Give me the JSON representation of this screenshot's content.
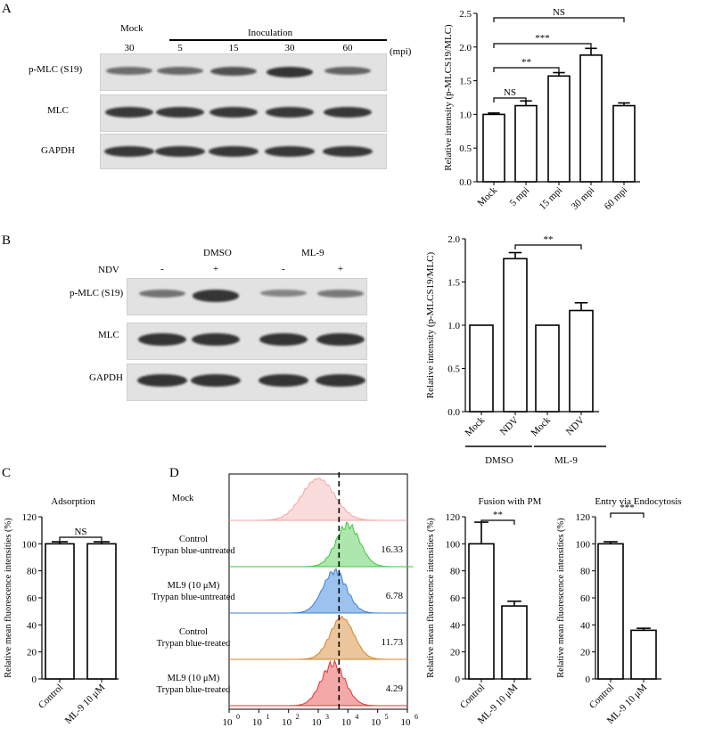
{
  "panels": {
    "A": "A",
    "B": "B",
    "C": "C",
    "D": "D"
  },
  "panelA_blot": {
    "mock_header": "Mock",
    "inoculation_header": "Inoculation",
    "unit": "(mpi)",
    "lanes": [
      "30",
      "5",
      "15",
      "30",
      "60"
    ],
    "rows": [
      "p-MLC (S19)",
      "MLC",
      "GAPDH"
    ],
    "pmlc_intensity": [
      0.45,
      0.5,
      0.7,
      0.95,
      0.55
    ]
  },
  "panelB_blot": {
    "group_labels": [
      "DMSO",
      "ML-9"
    ],
    "ndv_label": "NDV",
    "ndv_signs": [
      "-",
      "+",
      "-",
      "+"
    ],
    "rows": [
      "p-MLC (S19)",
      "MLC",
      "GAPDH"
    ],
    "pmlc_intensity": [
      0.45,
      0.95,
      0.3,
      0.4
    ]
  },
  "flow": {
    "row_labels": [
      [
        "Mock"
      ],
      [
        "Control",
        "Trypan blue-untreated"
      ],
      [
        "ML9 (10 μM)",
        "Trypan blue-untreated"
      ],
      [
        "Control",
        "Trypan blue-treated"
      ],
      [
        "ML9 (10 μM)",
        "Trypan blue-treated"
      ]
    ],
    "values": [
      "",
      "16.33",
      "6.78",
      "11.73",
      "4.29"
    ],
    "colors": [
      "#f4a3a3",
      "#3cc83c",
      "#3b82d6",
      "#d8842a",
      "#e83232"
    ],
    "fills": [
      "#f9d6d6",
      "#9fe39f",
      "#8cb7ea",
      "#e8bb8a",
      "#f29a9a"
    ],
    "peaks_log": [
      3.0,
      4.0,
      3.55,
      3.8,
      3.5
    ],
    "xticks": [
      "10",
      "10",
      "10",
      "10",
      "10",
      "10",
      "10"
    ],
    "xtick_exps": [
      "0",
      "1",
      "2",
      "3",
      "4",
      "5",
      "6"
    ]
  },
  "chart_data": [
    {
      "type": "bar",
      "panel": "A",
      "categories": [
        "Mock",
        "5 mpi",
        "15 mpi",
        "30 mpi",
        "60 mpi"
      ],
      "values": [
        1.0,
        1.13,
        1.57,
        1.88,
        1.13
      ],
      "errors": [
        0.02,
        0.07,
        0.05,
        0.1,
        0.04
      ],
      "ylabel": "Relative intensity (p-MLCS19/MLC)",
      "ylim": [
        0,
        2.5
      ],
      "yticks": [
        "0.0",
        "0.5",
        "1.0",
        "1.5",
        "2.0",
        "2.5"
      ],
      "annotations": [
        {
          "from": 0,
          "to": 1,
          "label": "NS"
        },
        {
          "from": 0,
          "to": 2,
          "label": "**"
        },
        {
          "from": 0,
          "to": 3,
          "label": "***"
        },
        {
          "from": 0,
          "to": 4,
          "label": "NS"
        }
      ]
    },
    {
      "type": "bar",
      "panel": "B",
      "categories": [
        "Mock",
        "NDV",
        "Mock",
        "NDV"
      ],
      "values": [
        1.0,
        1.77,
        1.0,
        1.17
      ],
      "errors": [
        0,
        0.07,
        0,
        0.09
      ],
      "groups": [
        "DMSO",
        "ML-9"
      ],
      "ylabel": "Relative intensity (p-MLCS19/MLC)",
      "ylim": [
        0,
        2.0
      ],
      "yticks": [
        "0.0",
        "0.5",
        "1.0",
        "1.5",
        "2.0"
      ],
      "annotations": [
        {
          "from": 1,
          "to": 3,
          "label": "**"
        }
      ]
    },
    {
      "type": "bar",
      "panel": "C",
      "title": "Adsorption",
      "categories": [
        "Control",
        "ML-9 10 μM"
      ],
      "values": [
        100,
        100
      ],
      "errors": [
        1.5,
        1.5
      ],
      "ylabel": "Relative mean fluorescence intensities (%)",
      "ylim": [
        0,
        120
      ],
      "yticks": [
        "0",
        "20",
        "40",
        "60",
        "80",
        "100",
        "120"
      ],
      "annotations": [
        {
          "from": 0,
          "to": 1,
          "label": "NS"
        }
      ]
    },
    {
      "type": "bar",
      "panel": "D-fusion",
      "title": "Fusion with PM",
      "categories": [
        "Control",
        "ML-9 10 μM"
      ],
      "values": [
        100,
        54
      ],
      "errors": [
        16,
        3.5
      ],
      "ylabel": "Relative mean fluorescence intensities (%)",
      "ylim": [
        0,
        120
      ],
      "yticks": [
        "0",
        "20",
        "40",
        "60",
        "80",
        "100",
        "120"
      ],
      "annotations": [
        {
          "from": 0,
          "to": 1,
          "label": "**"
        }
      ]
    },
    {
      "type": "bar",
      "panel": "D-entry",
      "title": "Entry via Endocytosis",
      "categories": [
        "Control",
        "ML-9 10 μM"
      ],
      "values": [
        100,
        36
      ],
      "errors": [
        1.5,
        1.5
      ],
      "ylabel": "Relative mean fluorescence intensities (%)",
      "ylim": [
        0,
        120
      ],
      "yticks": [
        "0",
        "20",
        "40",
        "60",
        "80",
        "100",
        "120"
      ],
      "annotations": [
        {
          "from": 0,
          "to": 1,
          "label": "***"
        }
      ]
    }
  ]
}
